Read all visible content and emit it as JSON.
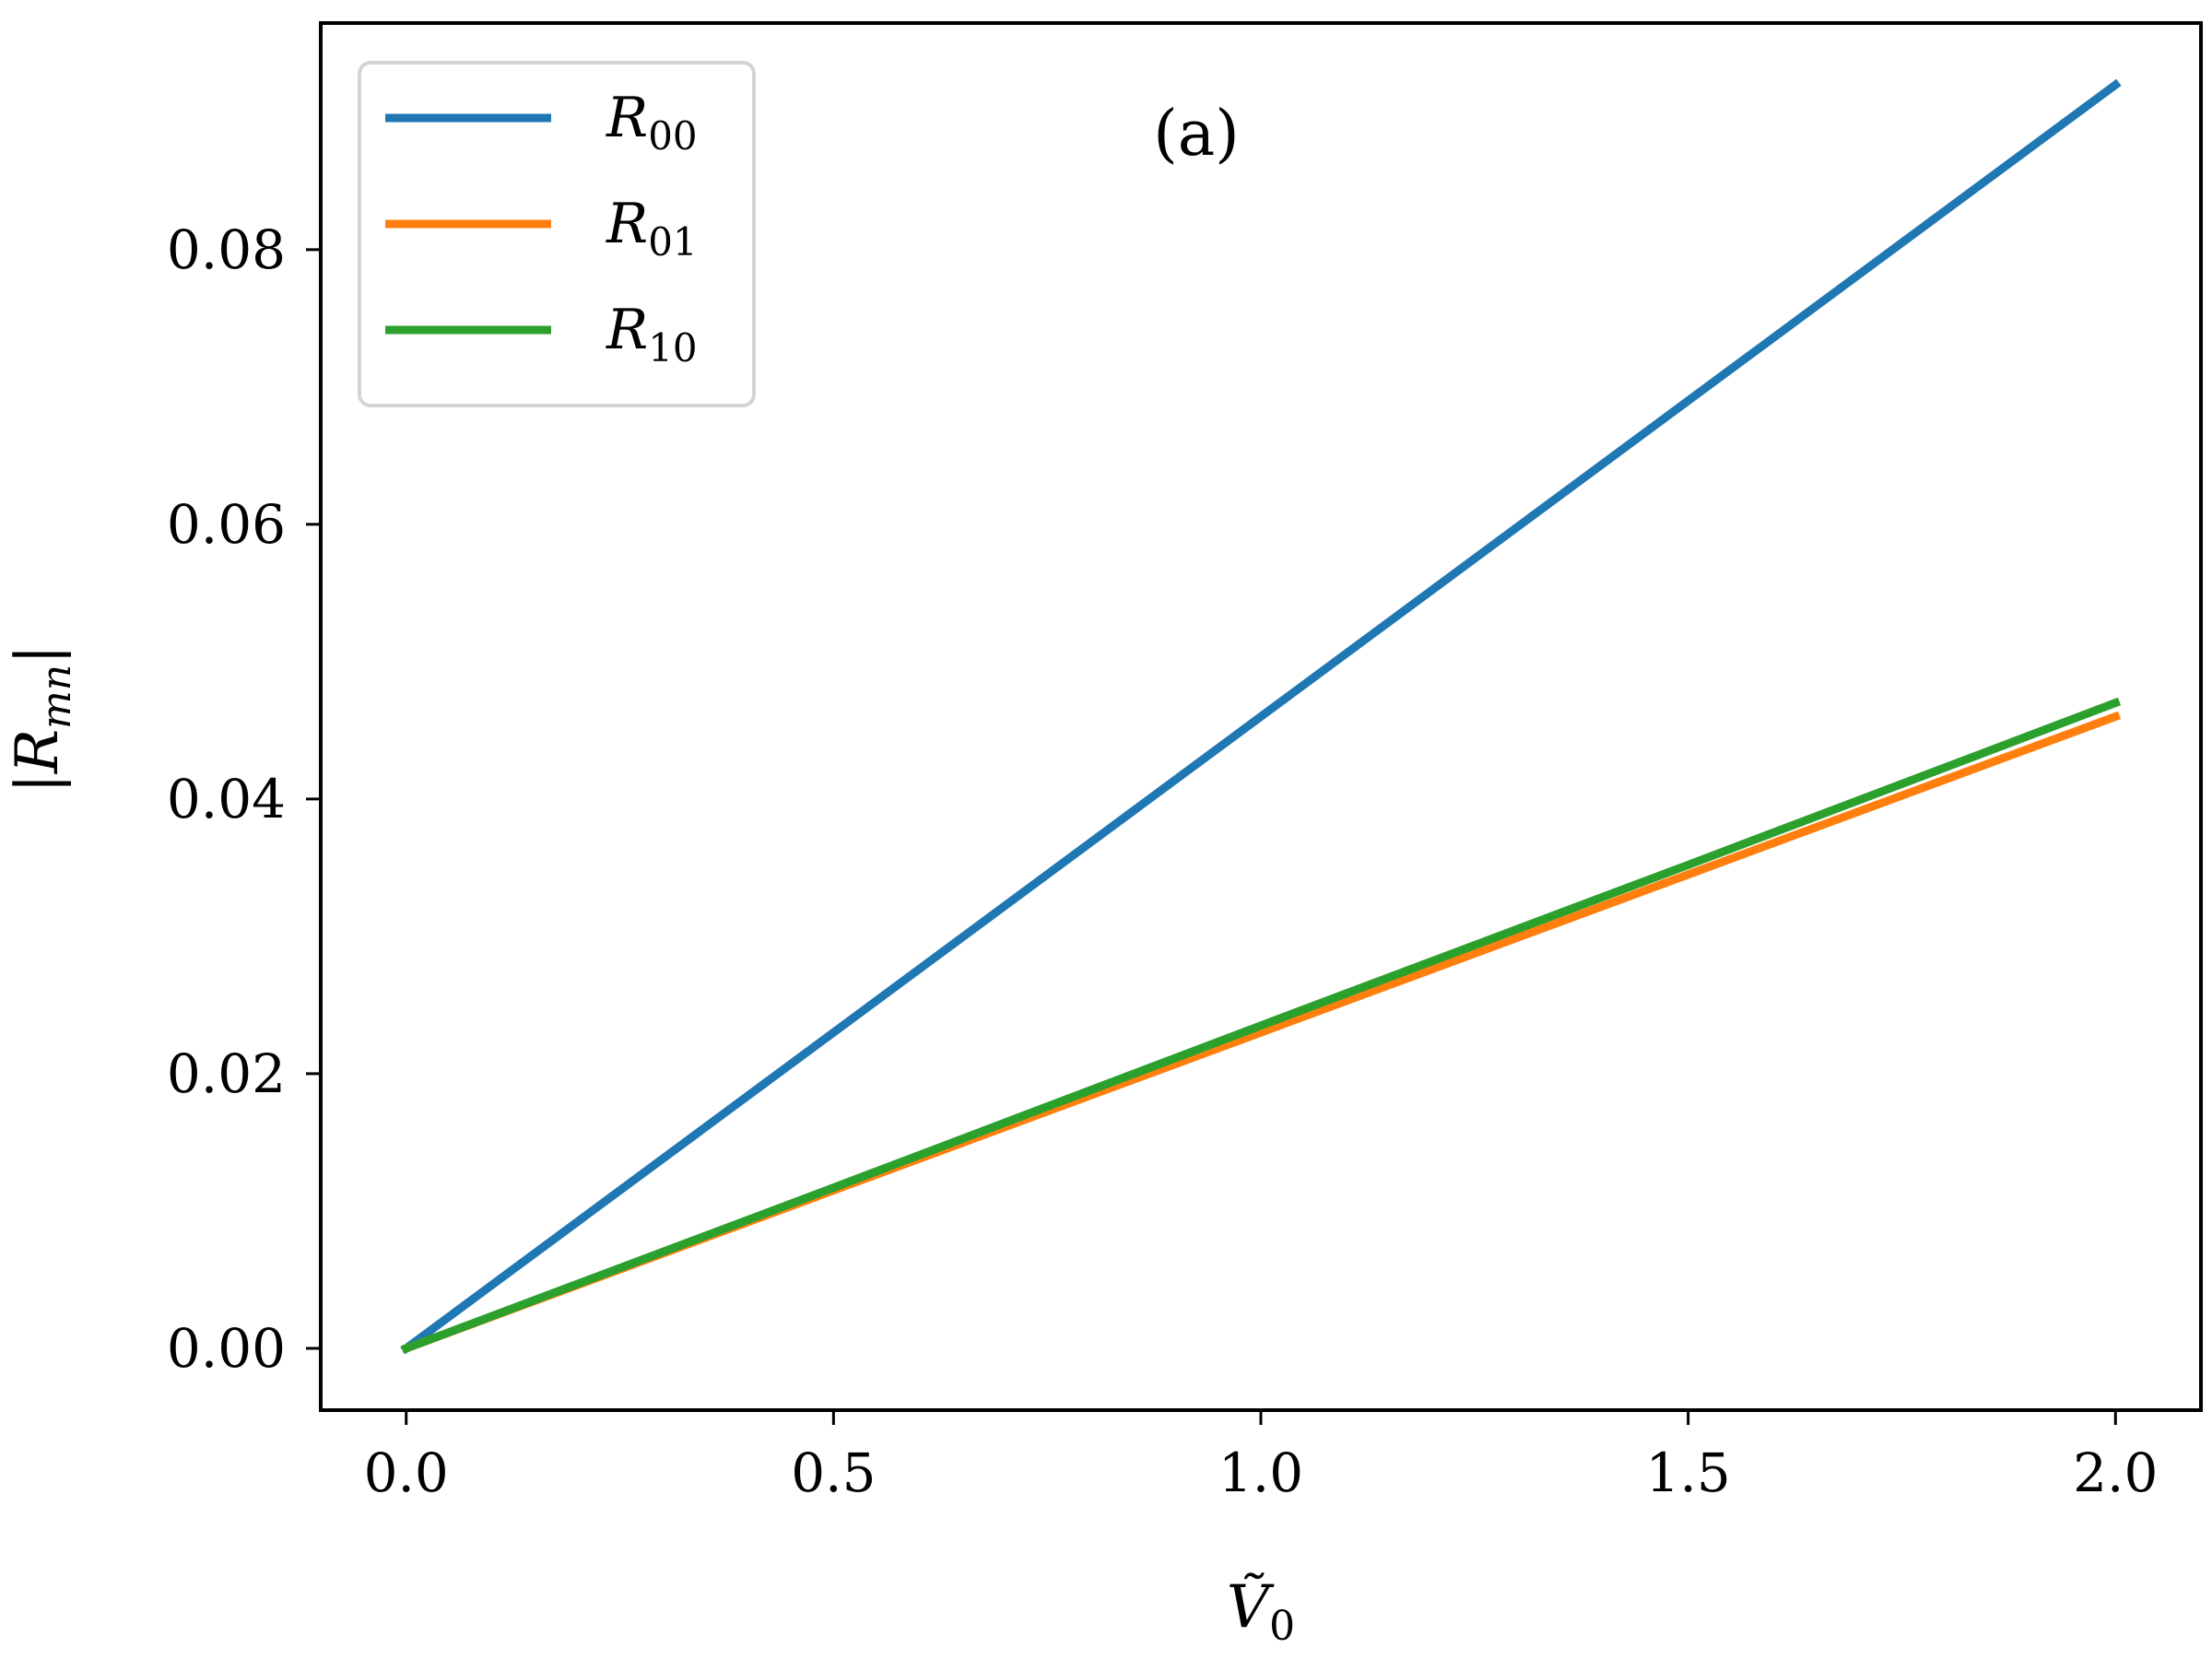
{
  "chart_data": {
    "type": "line",
    "panel_label": "(a)",
    "xlabel": {
      "main": "Ṽ",
      "sub": "0"
    },
    "ylabel": {
      "main": "|R",
      "sub": "mn",
      "close": "|"
    },
    "xlim": [
      -0.1,
      2.1
    ],
    "ylim": [
      -0.0045,
      0.0965
    ],
    "xticks": [
      0.0,
      0.5,
      1.0,
      1.5,
      2.0
    ],
    "xtick_labels": [
      "0.0",
      "0.5",
      "1.0",
      "1.5",
      "2.0"
    ],
    "yticks": [
      0.0,
      0.02,
      0.04,
      0.06,
      0.08
    ],
    "ytick_labels": [
      "0.00",
      "0.02",
      "0.04",
      "0.06",
      "0.08"
    ],
    "grid": false,
    "legend_position": "top-left",
    "series": [
      {
        "name": "R",
        "sub": "00",
        "color": "#1f77b4",
        "x": [
          0.0,
          0.5,
          1.0,
          1.5,
          2.0
        ],
        "y": [
          0.0,
          0.023,
          0.046,
          0.069,
          0.092
        ]
      },
      {
        "name": "R",
        "sub": "01",
        "color": "#ff7f0e",
        "x": [
          0.0,
          0.5,
          1.0,
          1.5,
          2.0
        ],
        "y": [
          0.0,
          0.0115,
          0.023,
          0.0345,
          0.046
        ]
      },
      {
        "name": "R",
        "sub": "10",
        "color": "#2ca02c",
        "x": [
          0.0,
          0.5,
          1.0,
          1.5,
          2.0
        ],
        "y": [
          0.0,
          0.0117,
          0.0235,
          0.0352,
          0.047
        ]
      }
    ]
  }
}
